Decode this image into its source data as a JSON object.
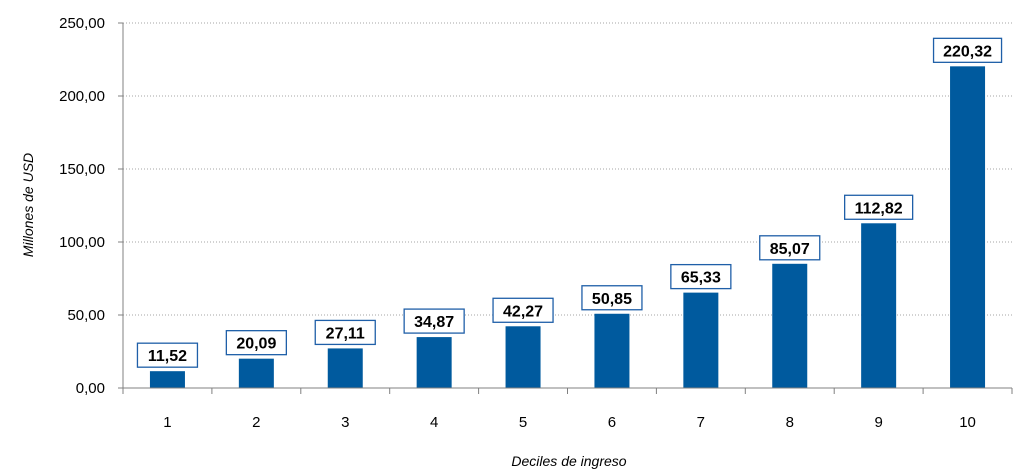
{
  "chart_data": {
    "type": "bar",
    "categories": [
      "1",
      "2",
      "3",
      "4",
      "5",
      "6",
      "7",
      "8",
      "9",
      "10"
    ],
    "values": [
      11.52,
      20.09,
      27.11,
      34.87,
      42.27,
      50.85,
      65.33,
      85.07,
      112.82,
      220.32
    ],
    "value_labels": [
      "11,52",
      "20,09",
      "27,11",
      "34,87",
      "42,27",
      "50,85",
      "65,33",
      "85,07",
      "112,82",
      "220,32"
    ],
    "xlabel": "Deciles de ingreso",
    "ylabel": "Millones de USD",
    "ylim": [
      0,
      250
    ],
    "yticks": [
      0,
      50,
      100,
      150,
      200,
      250
    ],
    "ytick_labels": [
      "0,00",
      "50,00",
      "100,00",
      "150,00",
      "200,00",
      "250,00"
    ],
    "grid": true,
    "legend": "none",
    "colors": {
      "bar": "#005a9e",
      "label_border": "#1f5fa8",
      "grid": "#a6a6a6",
      "axis": "#808080"
    }
  }
}
